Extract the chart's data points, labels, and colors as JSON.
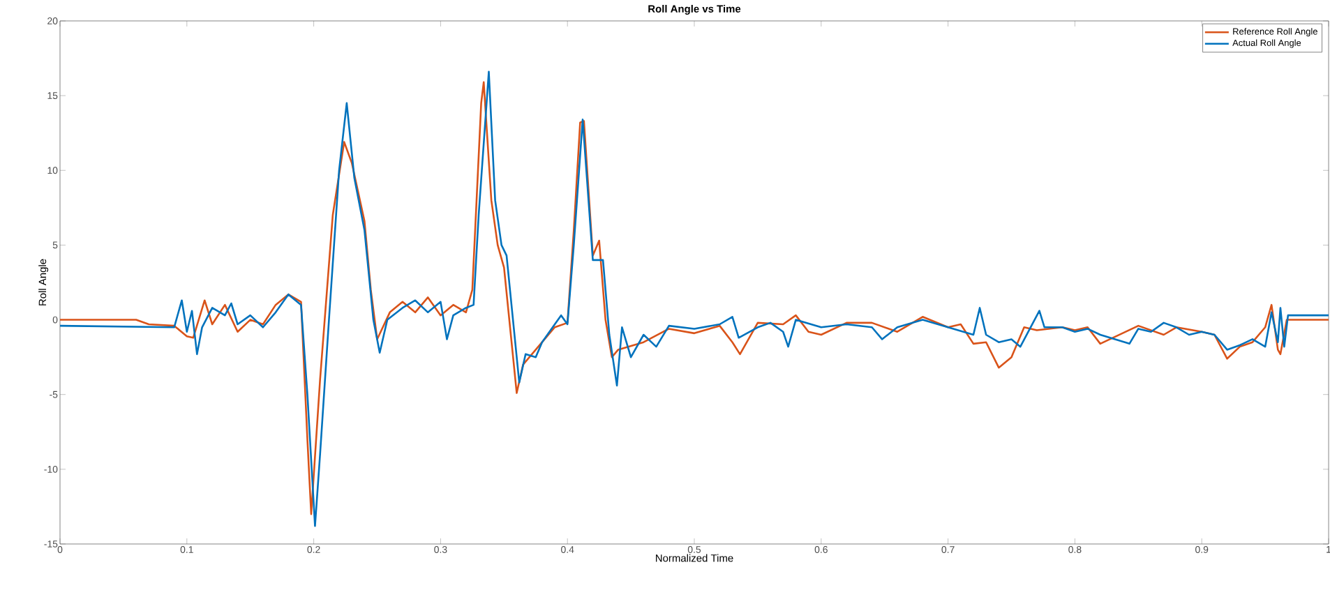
{
  "chart_data": {
    "type": "line",
    "title": "Roll Angle vs Time",
    "xlabel": "Normalized Time",
    "ylabel": "Roll Angle",
    "xlim": [
      0,
      1
    ],
    "ylim": [
      -15,
      20
    ],
    "xticks": [
      0,
      0.1,
      0.2,
      0.3,
      0.4,
      0.5,
      0.6,
      0.7,
      0.8,
      0.9,
      1
    ],
    "yticks": [
      -15,
      -10,
      -5,
      0,
      5,
      10,
      15,
      20
    ],
    "grid": false,
    "legend": "top right",
    "marker": "none",
    "line_style": "solid",
    "series": [
      {
        "name": "Reference Roll Angle",
        "color": "#d95319",
        "x": [
          0,
          0.06,
          0.07,
          0.09,
          0.1,
          0.105,
          0.114,
          0.12,
          0.13,
          0.14,
          0.15,
          0.16,
          0.17,
          0.18,
          0.19,
          0.195,
          0.198,
          0.205,
          0.215,
          0.224,
          0.23,
          0.24,
          0.245,
          0.25,
          0.26,
          0.27,
          0.28,
          0.29,
          0.3,
          0.31,
          0.32,
          0.325,
          0.332,
          0.334,
          0.34,
          0.345,
          0.35,
          0.36,
          0.365,
          0.375,
          0.38,
          0.39,
          0.4,
          0.405,
          0.41,
          0.413,
          0.42,
          0.425,
          0.43,
          0.435,
          0.44,
          0.46,
          0.48,
          0.5,
          0.52,
          0.53,
          0.536,
          0.55,
          0.57,
          0.58,
          0.59,
          0.6,
          0.62,
          0.64,
          0.66,
          0.68,
          0.7,
          0.71,
          0.72,
          0.73,
          0.74,
          0.75,
          0.76,
          0.77,
          0.79,
          0.8,
          0.81,
          0.82,
          0.84,
          0.85,
          0.87,
          0.88,
          0.9,
          0.91,
          0.92,
          0.93,
          0.94,
          0.95,
          0.955,
          0.96,
          0.962,
          0.967,
          1
        ],
        "values": [
          0,
          0,
          -0.3,
          -0.4,
          -1.1,
          -1.2,
          1.3,
          -0.3,
          1.0,
          -0.8,
          0,
          -0.3,
          1.0,
          1.7,
          1.2,
          -8,
          -13,
          -4,
          7,
          11.9,
          10.5,
          6.6,
          2,
          -1.3,
          0.5,
          1.2,
          0.5,
          1.5,
          0.3,
          1.0,
          0.5,
          2,
          14.5,
          15.9,
          8,
          5,
          3.5,
          -4.9,
          -3,
          -2,
          -1.5,
          -0.5,
          -0.2,
          6,
          13.2,
          13.3,
          4.3,
          5.3,
          0,
          -2.5,
          -2,
          -1.5,
          -0.6,
          -0.9,
          -0.4,
          -1.5,
          -2.3,
          -0.2,
          -0.3,
          0.3,
          -0.8,
          -1.0,
          -0.2,
          -0.2,
          -0.8,
          0.2,
          -0.5,
          -0.3,
          -1.6,
          -1.5,
          -3.2,
          -2.5,
          -0.5,
          -0.7,
          -0.5,
          -0.7,
          -0.5,
          -1.6,
          -0.8,
          -0.4,
          -1.0,
          -0.5,
          -0.8,
          -1.0,
          -2.6,
          -1.8,
          -1.5,
          -0.5,
          1.0,
          -2.0,
          -2.3,
          0,
          0
        ]
      },
      {
        "name": "Actual Roll Angle",
        "color": "#0072bd",
        "x": [
          0,
          0.09,
          0.096,
          0.1,
          0.104,
          0.108,
          0.112,
          0.12,
          0.13,
          0.135,
          0.14,
          0.15,
          0.16,
          0.17,
          0.18,
          0.19,
          0.195,
          0.201,
          0.205,
          0.212,
          0.22,
          0.226,
          0.232,
          0.24,
          0.247,
          0.252,
          0.258,
          0.27,
          0.28,
          0.29,
          0.3,
          0.305,
          0.31,
          0.32,
          0.326,
          0.33,
          0.338,
          0.343,
          0.348,
          0.352,
          0.362,
          0.367,
          0.375,
          0.38,
          0.39,
          0.395,
          0.4,
          0.405,
          0.412,
          0.42,
          0.428,
          0.433,
          0.439,
          0.443,
          0.45,
          0.46,
          0.47,
          0.48,
          0.5,
          0.52,
          0.53,
          0.535,
          0.55,
          0.56,
          0.57,
          0.574,
          0.58,
          0.6,
          0.62,
          0.64,
          0.648,
          0.66,
          0.68,
          0.7,
          0.72,
          0.725,
          0.73,
          0.74,
          0.75,
          0.757,
          0.772,
          0.776,
          0.79,
          0.8,
          0.81,
          0.82,
          0.843,
          0.85,
          0.86,
          0.87,
          0.88,
          0.89,
          0.9,
          0.91,
          0.92,
          0.93,
          0.94,
          0.95,
          0.955,
          0.96,
          0.962,
          0.965,
          0.968,
          1
        ],
        "values": [
          -0.4,
          -0.5,
          1.3,
          -0.8,
          0.6,
          -2.3,
          -0.5,
          0.8,
          0.3,
          1.1,
          -0.3,
          0.3,
          -0.5,
          0.5,
          1.7,
          1.0,
          -5,
          -13.8,
          -9,
          0,
          10,
          14.5,
          9.5,
          6,
          0,
          -2.2,
          0,
          0.8,
          1.3,
          0.5,
          1.2,
          -1.3,
          0.3,
          0.8,
          1.0,
          7,
          16.6,
          8,
          5,
          4.3,
          -4.2,
          -2.3,
          -2.5,
          -1.5,
          -0.3,
          0.3,
          -0.3,
          5,
          13.4,
          4,
          4,
          -1,
          -4.4,
          -0.5,
          -2.5,
          -1,
          -1.8,
          -0.4,
          -0.6,
          -0.3,
          0.2,
          -1.2,
          -0.5,
          -0.2,
          -0.8,
          -1.8,
          0,
          -0.5,
          -0.3,
          -0.5,
          -1.3,
          -0.5,
          0,
          -0.5,
          -1.0,
          0.8,
          -1.0,
          -1.5,
          -1.3,
          -1.8,
          0.6,
          -0.5,
          -0.5,
          -0.8,
          -0.6,
          -1.0,
          -1.6,
          -0.6,
          -0.8,
          -0.2,
          -0.5,
          -1.0,
          -0.8,
          -1.0,
          -2.0,
          -1.7,
          -1.3,
          -1.8,
          0.5,
          -1.5,
          0.8,
          -1.8,
          0.3,
          0.3
        ]
      }
    ]
  }
}
